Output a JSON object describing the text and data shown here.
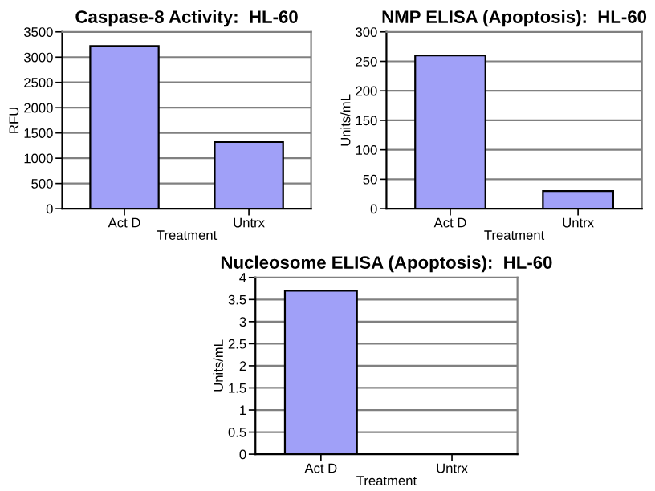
{
  "chart_data": [
    {
      "type": "bar",
      "title": "Caspase-8 Activity:  HL-60",
      "xlabel": "Treatment",
      "ylabel": "RFU",
      "categories": [
        "Act D",
        "Untrx"
      ],
      "values": [
        3220,
        1320
      ],
      "color": "#a0a0f8",
      "ylim": [
        0,
        3500
      ],
      "yticks": [
        0,
        500,
        1000,
        1500,
        2000,
        2500,
        3000,
        3500
      ],
      "grid": "y"
    },
    {
      "type": "bar",
      "title": "NMP ELISA (Apoptosis):  HL-60",
      "xlabel": "Treatment",
      "ylabel": "Units/mL",
      "categories": [
        "Act D",
        "Untrx"
      ],
      "values": [
        260,
        30
      ],
      "color": "#a0a0f8",
      "ylim": [
        0,
        300
      ],
      "yticks": [
        0,
        50,
        100,
        150,
        200,
        250,
        300
      ],
      "grid": "y"
    },
    {
      "type": "bar",
      "title": "Nucleosome ELISA (Apoptosis):  HL-60",
      "xlabel": "Treatment",
      "ylabel": "Units/mL",
      "categories": [
        "Act D",
        "Untrx"
      ],
      "values": [
        3.7,
        null
      ],
      "color": "#a0a0f8",
      "ylim": [
        0,
        4
      ],
      "yticks": [
        0,
        0.5,
        1,
        1.5,
        2,
        2.5,
        3,
        3.5,
        4
      ],
      "grid": "y"
    }
  ]
}
